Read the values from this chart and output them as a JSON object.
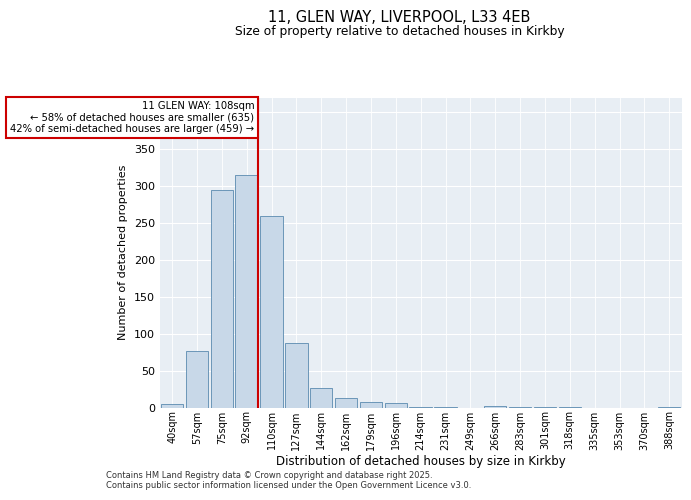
{
  "title1": "11, GLEN WAY, LIVERPOOL, L33 4EB",
  "title2": "Size of property relative to detached houses in Kirkby",
  "xlabel": "Distribution of detached houses by size in Kirkby",
  "ylabel": "Number of detached properties",
  "bar_labels": [
    "40sqm",
    "57sqm",
    "75sqm",
    "92sqm",
    "110sqm",
    "127sqm",
    "144sqm",
    "162sqm",
    "179sqm",
    "196sqm",
    "214sqm",
    "231sqm",
    "249sqm",
    "266sqm",
    "283sqm",
    "301sqm",
    "318sqm",
    "335sqm",
    "353sqm",
    "370sqm",
    "388sqm"
  ],
  "bar_values": [
    5,
    77,
    295,
    315,
    260,
    87,
    26,
    13,
    8,
    6,
    1,
    1,
    0,
    2,
    1,
    1,
    1,
    0,
    0,
    0,
    1
  ],
  "bar_color": "#c8d8e8",
  "bar_edge_color": "#5a8ab0",
  "annotation_text1": "11 GLEN WAY: 108sqm",
  "annotation_text2": "← 58% of detached houses are smaller (635)",
  "annotation_text3": "42% of semi-detached houses are larger (459) →",
  "vline_color": "#cc0000",
  "box_color": "#cc0000",
  "ylim": [
    0,
    420
  ],
  "yticks": [
    0,
    50,
    100,
    150,
    200,
    250,
    300,
    350,
    400
  ],
  "background_color": "#e8eef4",
  "footer1": "Contains HM Land Registry data © Crown copyright and database right 2025.",
  "footer2": "Contains public sector information licensed under the Open Government Licence v3.0."
}
